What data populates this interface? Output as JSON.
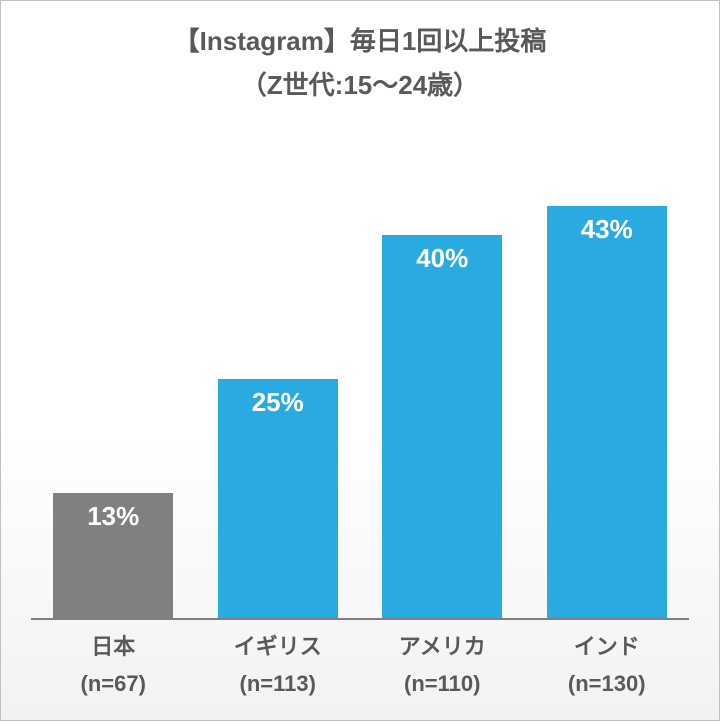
{
  "chart": {
    "type": "bar",
    "title_line1": "【Instagram】毎日1回以上投稿",
    "title_line2": "（Z世代:15〜24歳）",
    "title_fontsize": 26,
    "title_color": "#595959",
    "background_gradient_top": "#ffffff",
    "background_gradient_bottom": "#f2f2f2",
    "border_color": "#c0c0c0",
    "axis_color": "#808080",
    "ylim_max": 50,
    "bar_width_pct": 73,
    "bar_label_fontsize": 26,
    "bar_label_color": "#ffffff",
    "x_label_fontsize": 22,
    "x_label_color": "#595959",
    "bars": [
      {
        "category": "日本",
        "n_label": "(n=67)",
        "value": 13,
        "value_label": "13%",
        "color": "#808080"
      },
      {
        "category": "イギリス",
        "n_label": "(n=113)",
        "value": 25,
        "value_label": "25%",
        "color": "#29abe2"
      },
      {
        "category": "アメリカ",
        "n_label": "(n=110)",
        "value": 40,
        "value_label": "40%",
        "color": "#29abe2"
      },
      {
        "category": "インド",
        "n_label": "(n=130)",
        "value": 43,
        "value_label": "43%",
        "color": "#29abe2"
      }
    ]
  }
}
